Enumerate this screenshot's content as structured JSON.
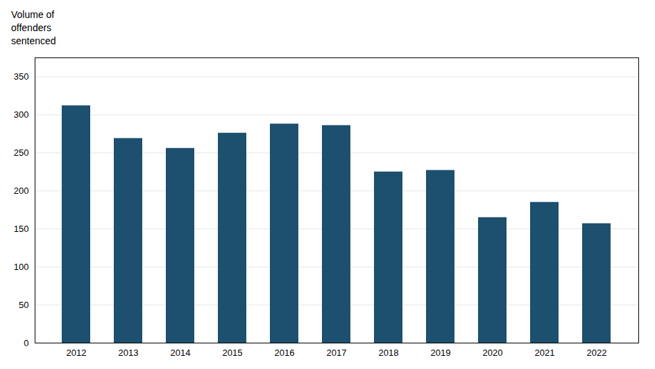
{
  "chart_data": {
    "type": "bar",
    "ylabel": "Volume of\noffenders\nsentenced",
    "categories": [
      "2012",
      "2013",
      "2014",
      "2015",
      "2016",
      "2017",
      "2018",
      "2019",
      "2020",
      "2021",
      "2022"
    ],
    "values": [
      312,
      269,
      256,
      276,
      288,
      286,
      225,
      227,
      165,
      185,
      157
    ],
    "color": "#1d4f6e",
    "ylim": [
      0,
      375
    ],
    "yticks": [
      0,
      50,
      100,
      150,
      200,
      250,
      300,
      350
    ],
    "grid": true
  }
}
